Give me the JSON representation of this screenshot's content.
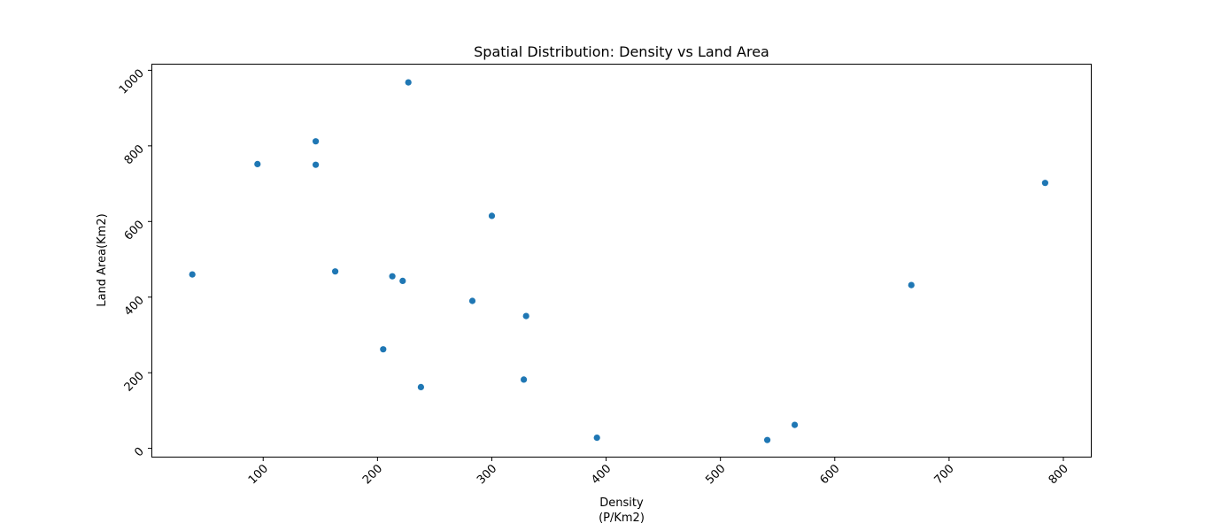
{
  "chart_data": {
    "type": "scatter",
    "title": "Spatial Distribution: Density vs Land Area",
    "xlabel_lines": [
      "Density",
      "(P/Km2)"
    ],
    "ylabel": "Land Area(Km2)",
    "xlim": [
      3,
      824
    ],
    "ylim": [
      -22,
      1015
    ],
    "xticks": [
      100,
      200,
      300,
      400,
      500,
      600,
      700,
      800
    ],
    "yticks": [
      0,
      200,
      400,
      600,
      800,
      1000
    ],
    "tick_label_rotation_deg": 45,
    "grid": false,
    "color": "#1f77b4",
    "points": [
      {
        "x": 38,
        "y": 460
      },
      {
        "x": 95,
        "y": 752
      },
      {
        "x": 146,
        "y": 812
      },
      {
        "x": 146,
        "y": 750
      },
      {
        "x": 163,
        "y": 468
      },
      {
        "x": 205,
        "y": 262
      },
      {
        "x": 213,
        "y": 455
      },
      {
        "x": 222,
        "y": 443
      },
      {
        "x": 227,
        "y": 968
      },
      {
        "x": 238,
        "y": 162
      },
      {
        "x": 283,
        "y": 390
      },
      {
        "x": 300,
        "y": 615
      },
      {
        "x": 328,
        "y": 182
      },
      {
        "x": 330,
        "y": 350
      },
      {
        "x": 392,
        "y": 28
      },
      {
        "x": 541,
        "y": 22
      },
      {
        "x": 565,
        "y": 62
      },
      {
        "x": 667,
        "y": 432
      },
      {
        "x": 784,
        "y": 702
      }
    ]
  }
}
